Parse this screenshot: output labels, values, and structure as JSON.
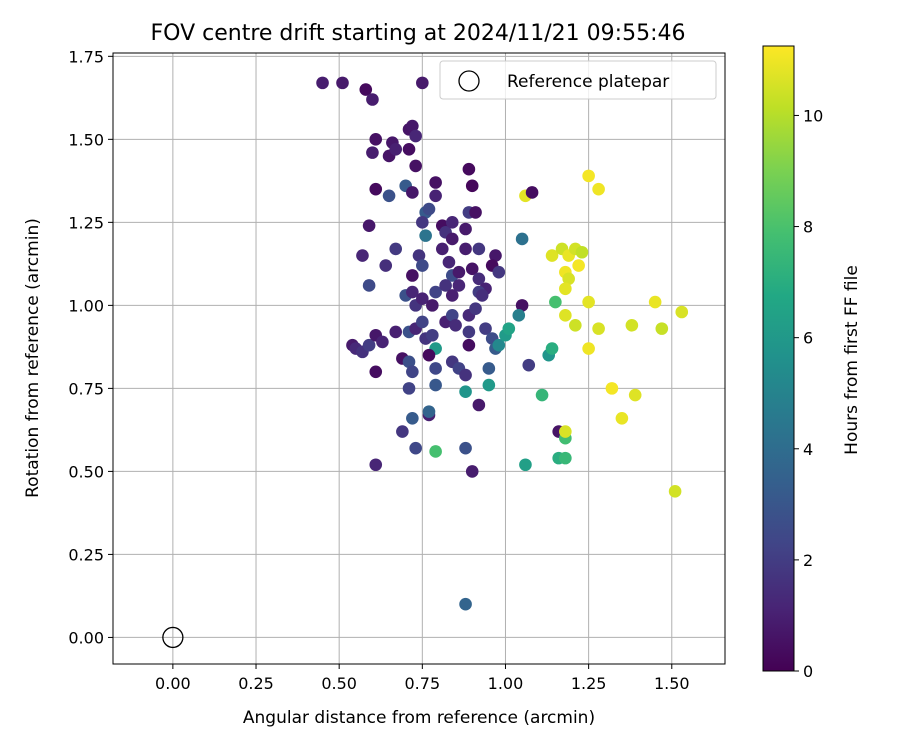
{
  "chart_data": {
    "type": "scatter",
    "title": "FOV centre drift starting at 2024/11/21 09:55:46",
    "xlabel": "Angular distance from reference (arcmin)",
    "ylabel": "Rotation from reference (arcmin)",
    "xlim": [
      -0.18,
      1.66
    ],
    "ylim": [
      -0.08,
      1.76
    ],
    "xticks": [
      0.0,
      0.25,
      0.5,
      0.75,
      1.0,
      1.25,
      1.5
    ],
    "yticks": [
      0.0,
      0.25,
      0.5,
      0.75,
      1.0,
      1.25,
      1.5,
      1.75
    ],
    "grid": true,
    "legend": {
      "placement": "top-right",
      "entries": [
        "Reference platepar"
      ]
    },
    "reference_point": {
      "x": 0.0,
      "y": 0.0,
      "marker": "open-circle"
    },
    "colorbar": {
      "label": "Hours from first FF file",
      "range": [
        0,
        11.25
      ],
      "ticks": [
        0,
        2,
        4,
        6,
        8,
        10
      ],
      "colormap": "viridis"
    },
    "points": [
      {
        "x": 0.45,
        "y": 1.67,
        "h": 0.9
      },
      {
        "x": 0.51,
        "y": 1.67,
        "h": 0.8
      },
      {
        "x": 0.58,
        "y": 1.65,
        "h": 0.3
      },
      {
        "x": 0.6,
        "y": 1.62,
        "h": 0.9
      },
      {
        "x": 0.75,
        "y": 1.67,
        "h": 0.8
      },
      {
        "x": 0.61,
        "y": 1.5,
        "h": 0.5
      },
      {
        "x": 0.6,
        "y": 1.46,
        "h": 0.9
      },
      {
        "x": 0.65,
        "y": 1.45,
        "h": 0.6
      },
      {
        "x": 0.66,
        "y": 1.49,
        "h": 0.7
      },
      {
        "x": 0.67,
        "y": 1.47,
        "h": 1.0
      },
      {
        "x": 0.71,
        "y": 1.53,
        "h": 0.6
      },
      {
        "x": 0.72,
        "y": 1.54,
        "h": 0.7
      },
      {
        "x": 0.73,
        "y": 1.51,
        "h": 1.2
      },
      {
        "x": 0.71,
        "y": 1.47,
        "h": 0.4
      },
      {
        "x": 0.73,
        "y": 1.42,
        "h": 0.5
      },
      {
        "x": 0.61,
        "y": 1.35,
        "h": 0.3
      },
      {
        "x": 0.65,
        "y": 1.33,
        "h": 2.8
      },
      {
        "x": 0.7,
        "y": 1.36,
        "h": 3.2
      },
      {
        "x": 0.72,
        "y": 1.34,
        "h": 0.7
      },
      {
        "x": 0.79,
        "y": 1.37,
        "h": 0.5
      },
      {
        "x": 0.79,
        "y": 1.33,
        "h": 1.1
      },
      {
        "x": 0.89,
        "y": 1.41,
        "h": 0.3
      },
      {
        "x": 0.9,
        "y": 1.36,
        "h": 0.2
      },
      {
        "x": 1.06,
        "y": 1.33,
        "h": 10.8
      },
      {
        "x": 1.08,
        "y": 1.34,
        "h": 0.4
      },
      {
        "x": 0.59,
        "y": 1.24,
        "h": 0.7
      },
      {
        "x": 0.76,
        "y": 1.28,
        "h": 3.2
      },
      {
        "x": 0.77,
        "y": 1.29,
        "h": 2.5
      },
      {
        "x": 0.75,
        "y": 1.25,
        "h": 1.8
      },
      {
        "x": 0.76,
        "y": 1.21,
        "h": 4.3
      },
      {
        "x": 0.81,
        "y": 1.24,
        "h": 0.4
      },
      {
        "x": 0.82,
        "y": 1.22,
        "h": 1.6
      },
      {
        "x": 0.84,
        "y": 1.25,
        "h": 1.2
      },
      {
        "x": 0.84,
        "y": 1.2,
        "h": 0.8
      },
      {
        "x": 0.89,
        "y": 1.28,
        "h": 2.0
      },
      {
        "x": 0.91,
        "y": 1.28,
        "h": 0.5
      },
      {
        "x": 0.88,
        "y": 1.23,
        "h": 0.8
      },
      {
        "x": 0.88,
        "y": 1.17,
        "h": 0.9
      },
      {
        "x": 0.92,
        "y": 1.17,
        "h": 1.8
      },
      {
        "x": 0.97,
        "y": 1.15,
        "h": 0.7
      },
      {
        "x": 1.05,
        "y": 1.2,
        "h": 4.2
      },
      {
        "x": 0.57,
        "y": 1.15,
        "h": 1.2
      },
      {
        "x": 0.64,
        "y": 1.12,
        "h": 1.5
      },
      {
        "x": 0.67,
        "y": 1.17,
        "h": 1.9
      },
      {
        "x": 0.72,
        "y": 1.09,
        "h": 0.5
      },
      {
        "x": 0.74,
        "y": 1.15,
        "h": 1.7
      },
      {
        "x": 0.75,
        "y": 1.12,
        "h": 2.5
      },
      {
        "x": 0.81,
        "y": 1.17,
        "h": 1.0
      },
      {
        "x": 0.83,
        "y": 1.13,
        "h": 1.2
      },
      {
        "x": 0.84,
        "y": 1.09,
        "h": 2.6
      },
      {
        "x": 0.86,
        "y": 1.1,
        "h": 0.8
      },
      {
        "x": 0.9,
        "y": 1.11,
        "h": 0.6
      },
      {
        "x": 0.92,
        "y": 1.08,
        "h": 1.4
      },
      {
        "x": 0.94,
        "y": 1.05,
        "h": 1.1
      },
      {
        "x": 0.96,
        "y": 1.12,
        "h": 0.3
      },
      {
        "x": 0.98,
        "y": 1.1,
        "h": 1.8
      },
      {
        "x": 0.59,
        "y": 1.06,
        "h": 2.5
      },
      {
        "x": 0.7,
        "y": 1.03,
        "h": 2.8
      },
      {
        "x": 0.72,
        "y": 1.04,
        "h": 1.2
      },
      {
        "x": 0.73,
        "y": 1.0,
        "h": 1.7
      },
      {
        "x": 0.75,
        "y": 1.02,
        "h": 1.1
      },
      {
        "x": 0.78,
        "y": 1.0,
        "h": 0.8
      },
      {
        "x": 0.79,
        "y": 1.04,
        "h": 2.2
      },
      {
        "x": 0.82,
        "y": 1.06,
        "h": 1.6
      },
      {
        "x": 0.84,
        "y": 1.03,
        "h": 1.0
      },
      {
        "x": 0.86,
        "y": 1.06,
        "h": 1.2
      },
      {
        "x": 0.92,
        "y": 1.04,
        "h": 2.0
      },
      {
        "x": 0.93,
        "y": 1.03,
        "h": 1.5
      },
      {
        "x": 1.05,
        "y": 1.0,
        "h": 0.5
      },
      {
        "x": 1.04,
        "y": 0.97,
        "h": 4.8
      },
      {
        "x": 0.54,
        "y": 0.88,
        "h": 0.8
      },
      {
        "x": 0.55,
        "y": 0.87,
        "h": 1.3
      },
      {
        "x": 0.57,
        "y": 0.86,
        "h": 1.6
      },
      {
        "x": 0.59,
        "y": 0.88,
        "h": 2.0
      },
      {
        "x": 0.61,
        "y": 0.91,
        "h": 0.7
      },
      {
        "x": 0.63,
        "y": 0.89,
        "h": 1.1
      },
      {
        "x": 0.67,
        "y": 0.92,
        "h": 1.0
      },
      {
        "x": 0.71,
        "y": 0.92,
        "h": 2.8
      },
      {
        "x": 0.73,
        "y": 0.93,
        "h": 1.2
      },
      {
        "x": 0.75,
        "y": 0.95,
        "h": 2.2
      },
      {
        "x": 0.76,
        "y": 0.9,
        "h": 1.7
      },
      {
        "x": 0.78,
        "y": 0.91,
        "h": 2.0
      },
      {
        "x": 0.79,
        "y": 0.87,
        "h": 6.0
      },
      {
        "x": 0.82,
        "y": 0.95,
        "h": 1.0
      },
      {
        "x": 0.84,
        "y": 0.97,
        "h": 2.3
      },
      {
        "x": 0.85,
        "y": 0.94,
        "h": 1.4
      },
      {
        "x": 0.89,
        "y": 0.92,
        "h": 1.9
      },
      {
        "x": 0.89,
        "y": 0.88,
        "h": 0.4
      },
      {
        "x": 0.89,
        "y": 0.97,
        "h": 1.3
      },
      {
        "x": 0.91,
        "y": 0.99,
        "h": 1.8
      },
      {
        "x": 0.94,
        "y": 0.93,
        "h": 2.0
      },
      {
        "x": 0.96,
        "y": 0.9,
        "h": 2.6
      },
      {
        "x": 0.97,
        "y": 0.87,
        "h": 3.2
      },
      {
        "x": 0.98,
        "y": 0.88,
        "h": 5.2
      },
      {
        "x": 1.0,
        "y": 0.91,
        "h": 6.1
      },
      {
        "x": 1.01,
        "y": 0.93,
        "h": 6.5
      },
      {
        "x": 0.61,
        "y": 0.8,
        "h": 0.4
      },
      {
        "x": 0.69,
        "y": 0.84,
        "h": 0.5
      },
      {
        "x": 0.71,
        "y": 0.83,
        "h": 2.7
      },
      {
        "x": 0.72,
        "y": 0.8,
        "h": 2.3
      },
      {
        "x": 0.77,
        "y": 0.85,
        "h": 0.3
      },
      {
        "x": 0.79,
        "y": 0.81,
        "h": 2.4
      },
      {
        "x": 0.84,
        "y": 0.83,
        "h": 1.8
      },
      {
        "x": 0.86,
        "y": 0.81,
        "h": 2.2
      },
      {
        "x": 0.88,
        "y": 0.79,
        "h": 1.6
      },
      {
        "x": 0.95,
        "y": 0.81,
        "h": 3.2
      },
      {
        "x": 1.07,
        "y": 0.82,
        "h": 2.0
      },
      {
        "x": 1.13,
        "y": 0.85,
        "h": 5.8
      },
      {
        "x": 1.14,
        "y": 0.87,
        "h": 7.0
      },
      {
        "x": 0.71,
        "y": 0.75,
        "h": 2.2
      },
      {
        "x": 0.79,
        "y": 0.76,
        "h": 3.1
      },
      {
        "x": 0.88,
        "y": 0.74,
        "h": 5.8
      },
      {
        "x": 0.95,
        "y": 0.76,
        "h": 6.0
      },
      {
        "x": 0.92,
        "y": 0.7,
        "h": 0.8
      },
      {
        "x": 1.11,
        "y": 0.73,
        "h": 7.4
      },
      {
        "x": 0.72,
        "y": 0.66,
        "h": 3.2
      },
      {
        "x": 0.77,
        "y": 0.67,
        "h": 1.0
      },
      {
        "x": 0.77,
        "y": 0.68,
        "h": 3.6
      },
      {
        "x": 0.69,
        "y": 0.62,
        "h": 1.8
      },
      {
        "x": 1.16,
        "y": 0.62,
        "h": 0.6
      },
      {
        "x": 1.18,
        "y": 0.6,
        "h": 7.8
      },
      {
        "x": 1.18,
        "y": 0.62,
        "h": 10.6
      },
      {
        "x": 0.61,
        "y": 0.52,
        "h": 1.2
      },
      {
        "x": 0.73,
        "y": 0.57,
        "h": 2.4
      },
      {
        "x": 0.79,
        "y": 0.56,
        "h": 7.9
      },
      {
        "x": 0.88,
        "y": 0.57,
        "h": 2.8
      },
      {
        "x": 0.9,
        "y": 0.5,
        "h": 0.9
      },
      {
        "x": 1.06,
        "y": 0.52,
        "h": 6.3
      },
      {
        "x": 1.16,
        "y": 0.54,
        "h": 7.0
      },
      {
        "x": 1.18,
        "y": 0.54,
        "h": 7.5
      },
      {
        "x": 0.88,
        "y": 0.1,
        "h": 3.6
      },
      {
        "x": 1.15,
        "y": 1.01,
        "h": 7.9
      },
      {
        "x": 1.14,
        "y": 1.15,
        "h": 10.7
      },
      {
        "x": 1.17,
        "y": 1.17,
        "h": 10.4
      },
      {
        "x": 1.18,
        "y": 1.1,
        "h": 11.0
      },
      {
        "x": 1.19,
        "y": 1.15,
        "h": 10.9
      },
      {
        "x": 1.19,
        "y": 1.08,
        "h": 10.6
      },
      {
        "x": 1.18,
        "y": 1.05,
        "h": 10.8
      },
      {
        "x": 1.21,
        "y": 1.17,
        "h": 10.5
      },
      {
        "x": 1.22,
        "y": 1.12,
        "h": 11.1
      },
      {
        "x": 1.23,
        "y": 1.16,
        "h": 10.2
      },
      {
        "x": 1.25,
        "y": 1.39,
        "h": 11.1
      },
      {
        "x": 1.28,
        "y": 1.35,
        "h": 11.0
      },
      {
        "x": 1.25,
        "y": 1.01,
        "h": 10.8
      },
      {
        "x": 1.18,
        "y": 0.97,
        "h": 10.7
      },
      {
        "x": 1.21,
        "y": 0.94,
        "h": 10.4
      },
      {
        "x": 1.28,
        "y": 0.93,
        "h": 10.6
      },
      {
        "x": 1.25,
        "y": 0.87,
        "h": 11.0
      },
      {
        "x": 1.38,
        "y": 0.94,
        "h": 10.5
      },
      {
        "x": 1.45,
        "y": 1.01,
        "h": 10.9
      },
      {
        "x": 1.47,
        "y": 0.93,
        "h": 10.3
      },
      {
        "x": 1.53,
        "y": 0.98,
        "h": 10.6
      },
      {
        "x": 1.32,
        "y": 0.75,
        "h": 11.1
      },
      {
        "x": 1.39,
        "y": 0.73,
        "h": 10.7
      },
      {
        "x": 1.35,
        "y": 0.66,
        "h": 10.9
      },
      {
        "x": 1.51,
        "y": 0.44,
        "h": 10.5
      }
    ]
  }
}
